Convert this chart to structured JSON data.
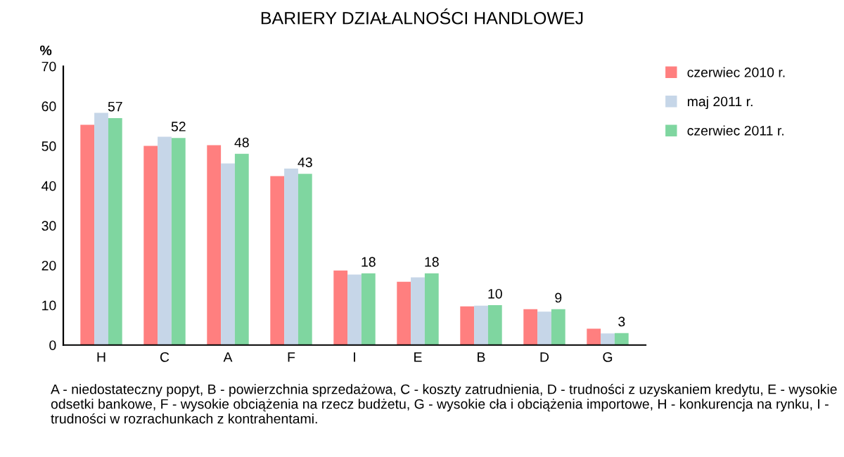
{
  "chart_data": {
    "type": "bar",
    "title": "BARIERY DZIAŁALNOŚCI HANDLOWEJ",
    "ylabel": "%",
    "categories": [
      "H",
      "C",
      "A",
      "F",
      "I",
      "E",
      "B",
      "D",
      "G"
    ],
    "series": [
      {
        "name": "czerwiec 2010 r.",
        "color": "#ff7f7f",
        "values": [
          55.3,
          50.0,
          50.2,
          42.4,
          18.7,
          15.9,
          9.7,
          9.0,
          4.1
        ]
      },
      {
        "name": "maj 2011 r.",
        "color": "#c6d6e8",
        "values": [
          58.3,
          52.3,
          45.6,
          44.3,
          17.7,
          17.0,
          9.9,
          8.4,
          2.9
        ]
      },
      {
        "name": "czerwiec 2011 r.",
        "color": "#7fd6a0",
        "values": [
          57,
          52,
          48,
          43,
          18,
          18,
          10,
          9,
          3
        ],
        "value_labels": [
          "57",
          "52",
          "48",
          "43",
          "18",
          "18",
          "10",
          "9",
          "3"
        ]
      }
    ],
    "ylim": [
      0,
      70
    ],
    "yticks": [
      0,
      10,
      20,
      30,
      40,
      50,
      60,
      70
    ],
    "grid": false,
    "legend": "top right",
    "annotations": [
      "A - niedostateczny popyt, B - powierzchnia sprzedażowa, C - koszty zatrudnienia, D - trudności z uzyskaniem kredytu, E - wysokie odsetki bankowe, F - wysokie obciążenia na rzecz budżetu, G - wysokie cła i obciążenia importowe, H - konkurencja na rynku, I - trudności w rozrachunkach z kontrahentami."
    ]
  }
}
